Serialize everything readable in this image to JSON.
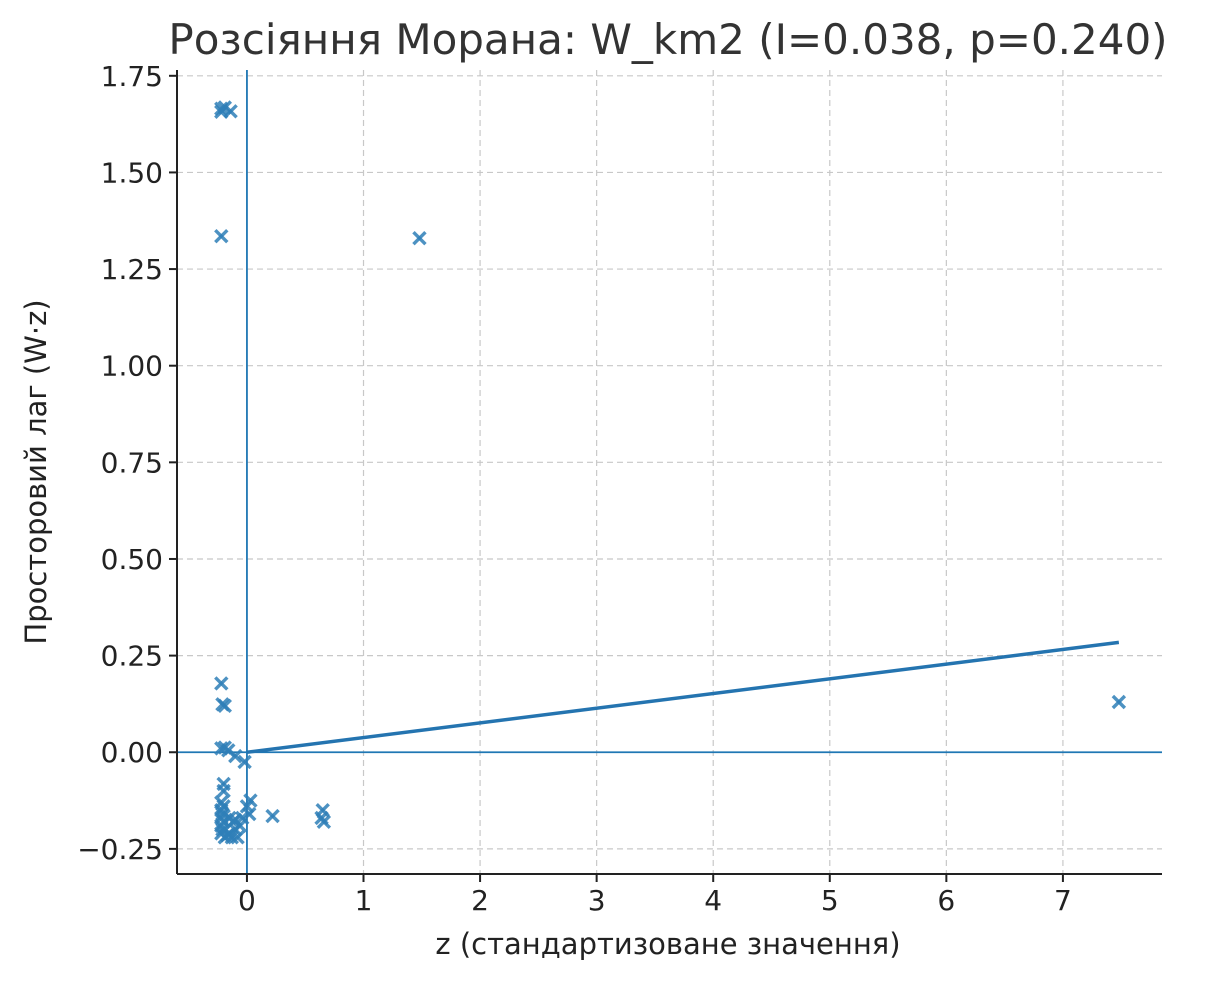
{
  "chart_data": {
    "type": "scatter",
    "title": "Розсіяння Морана: W_km2 (I=0.038, p=0.240)",
    "xlabel": "z (стандартизоване значення)",
    "ylabel": "Просторовий лаг (W·z)",
    "xlim": [
      -0.6,
      7.85
    ],
    "ylim": [
      -0.315,
      1.765
    ],
    "xticks": [
      0,
      1,
      2,
      3,
      4,
      5,
      6,
      7
    ],
    "xtick_labels": [
      "0",
      "1",
      "2",
      "3",
      "4",
      "5",
      "6",
      "7"
    ],
    "yticks": [
      -0.25,
      0.0,
      0.25,
      0.5,
      0.75,
      1.0,
      1.25,
      1.5,
      1.75
    ],
    "ytick_labels": [
      "−0.25",
      "0.00",
      "0.25",
      "0.50",
      "0.75",
      "1.00",
      "1.25",
      "1.50",
      "1.75"
    ],
    "grid": true,
    "marker": "x",
    "colors": {
      "points": "#2f7fb8",
      "fit_line": "#2474b0",
      "reference_lines": "#1f77b4"
    },
    "reference_lines": {
      "x": 0,
      "y": 0
    },
    "fit_line": {
      "slope": 0.038,
      "intercept": 0,
      "x_range": [
        0,
        7.48
      ]
    },
    "points": [
      [
        -0.22,
        1.665
      ],
      [
        -0.19,
        1.668
      ],
      [
        -0.22,
        1.657
      ],
      [
        -0.14,
        1.658
      ],
      [
        -0.22,
        1.335
      ],
      [
        1.48,
        1.33
      ],
      [
        7.48,
        0.13
      ],
      [
        -0.22,
        0.178
      ],
      [
        -0.21,
        0.124
      ],
      [
        -0.19,
        0.12
      ],
      [
        -0.22,
        0.01
      ],
      [
        -0.19,
        0.012
      ],
      [
        -0.16,
        0.005
      ],
      [
        -0.1,
        -0.01
      ],
      [
        -0.02,
        -0.025
      ],
      [
        -0.2,
        -0.082
      ],
      [
        -0.2,
        -0.1
      ],
      [
        -0.22,
        -0.13
      ],
      [
        -0.2,
        -0.14
      ],
      [
        -0.22,
        -0.15
      ],
      [
        -0.21,
        -0.16
      ],
      [
        -0.22,
        -0.17
      ],
      [
        -0.2,
        -0.18
      ],
      [
        -0.22,
        -0.19
      ],
      [
        -0.21,
        -0.2
      ],
      [
        -0.22,
        -0.21
      ],
      [
        -0.19,
        -0.22
      ],
      [
        -0.17,
        -0.215
      ],
      [
        -0.15,
        -0.21
      ],
      [
        -0.13,
        -0.22
      ],
      [
        -0.1,
        -0.2
      ],
      [
        -0.08,
        -0.22
      ],
      [
        -0.12,
        -0.18
      ],
      [
        -0.15,
        -0.17
      ],
      [
        -0.06,
        -0.19
      ],
      [
        -0.04,
        -0.17
      ],
      [
        -0.1,
        -0.175
      ],
      [
        0.0,
        -0.14
      ],
      [
        0.03,
        -0.125
      ],
      [
        0.02,
        -0.16
      ],
      [
        0.22,
        -0.165
      ],
      [
        0.65,
        -0.15
      ],
      [
        0.66,
        -0.18
      ],
      [
        0.64,
        -0.17
      ]
    ]
  }
}
